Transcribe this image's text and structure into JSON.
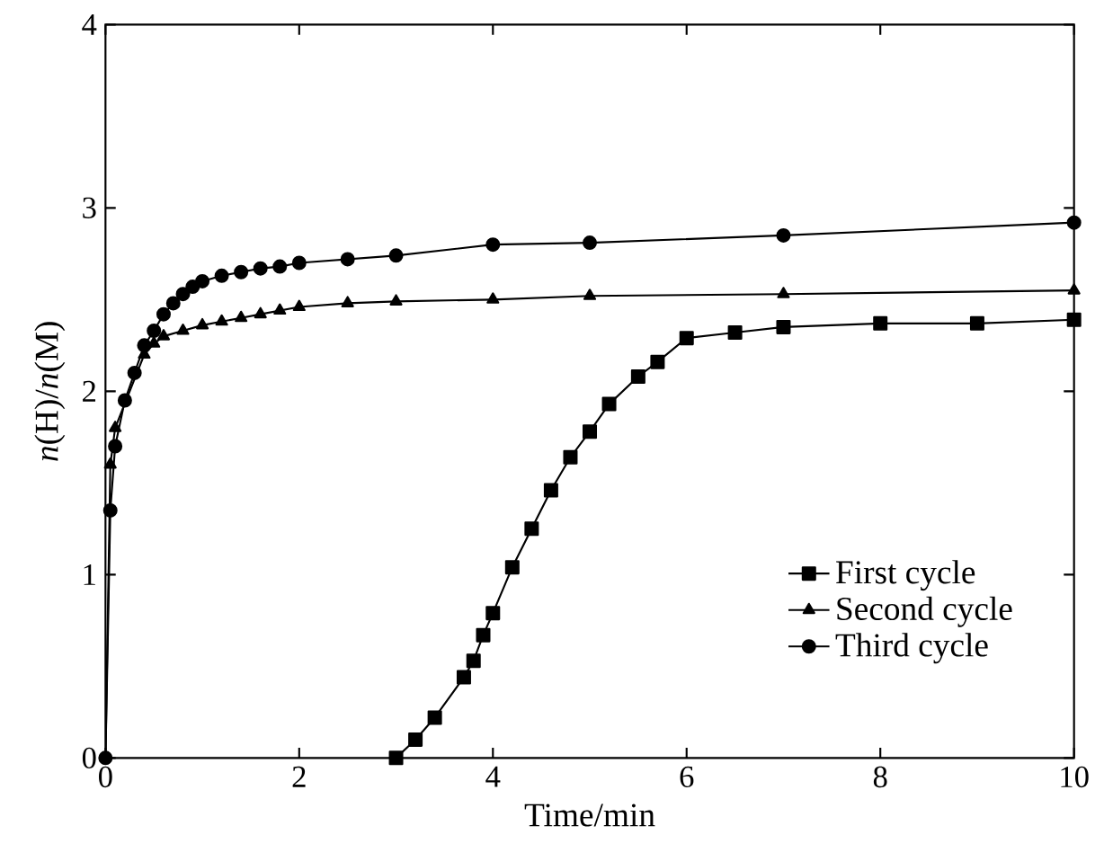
{
  "chart_data": {
    "type": "line",
    "xlabel": "Time/min",
    "ylabel": "*n*(H)/*n*(M)",
    "xlim": [
      0,
      10
    ],
    "ylim": [
      0,
      4
    ],
    "xticks": [
      0,
      2,
      4,
      6,
      8,
      10
    ],
    "yticks": [
      0,
      1,
      2,
      3,
      4
    ],
    "grid": false,
    "legend": "bottom right",
    "line_style": "solid",
    "series": [
      {
        "name": "First cycle",
        "color": "#000000",
        "marker": "square",
        "x": [
          3.0,
          3.2,
          3.4,
          3.7,
          3.8,
          3.9,
          4.0,
          4.2,
          4.4,
          4.6,
          4.8,
          5.0,
          5.2,
          5.5,
          5.7,
          6.0,
          6.5,
          7.0,
          8.0,
          9.0,
          10.0
        ],
        "values": [
          0,
          0.1,
          0.22,
          0.44,
          0.53,
          0.67,
          0.79,
          1.04,
          1.25,
          1.46,
          1.64,
          1.78,
          1.93,
          2.08,
          2.16,
          2.29,
          2.32,
          2.35,
          2.37,
          2.37,
          2.39
        ]
      },
      {
        "name": "Second cycle",
        "color": "#000000",
        "marker": "triangle",
        "x": [
          0,
          0.05,
          0.1,
          0.4,
          0.5,
          0.6,
          0.8,
          1.0,
          1.2,
          1.4,
          1.6,
          1.8,
          2.0,
          2.5,
          3.0,
          4.0,
          5.0,
          7.0,
          10.0
        ],
        "values": [
          0,
          1.6,
          1.8,
          2.2,
          2.26,
          2.3,
          2.33,
          2.36,
          2.38,
          2.4,
          2.42,
          2.44,
          2.46,
          2.48,
          2.49,
          2.5,
          2.52,
          2.53,
          2.55
        ]
      },
      {
        "name": "Third cycle",
        "color": "#000000",
        "marker": "circle",
        "x": [
          0,
          0.05,
          0.1,
          0.2,
          0.3,
          0.4,
          0.5,
          0.6,
          0.7,
          0.8,
          0.9,
          1.0,
          1.2,
          1.4,
          1.6,
          1.8,
          2.0,
          2.5,
          3.0,
          4.0,
          5.0,
          7.0,
          10.0
        ],
        "values": [
          0,
          1.35,
          1.7,
          1.95,
          2.1,
          2.25,
          2.33,
          2.42,
          2.48,
          2.53,
          2.57,
          2.6,
          2.63,
          2.65,
          2.67,
          2.68,
          2.7,
          2.72,
          2.74,
          2.8,
          2.81,
          2.85,
          2.92
        ]
      }
    ]
  }
}
